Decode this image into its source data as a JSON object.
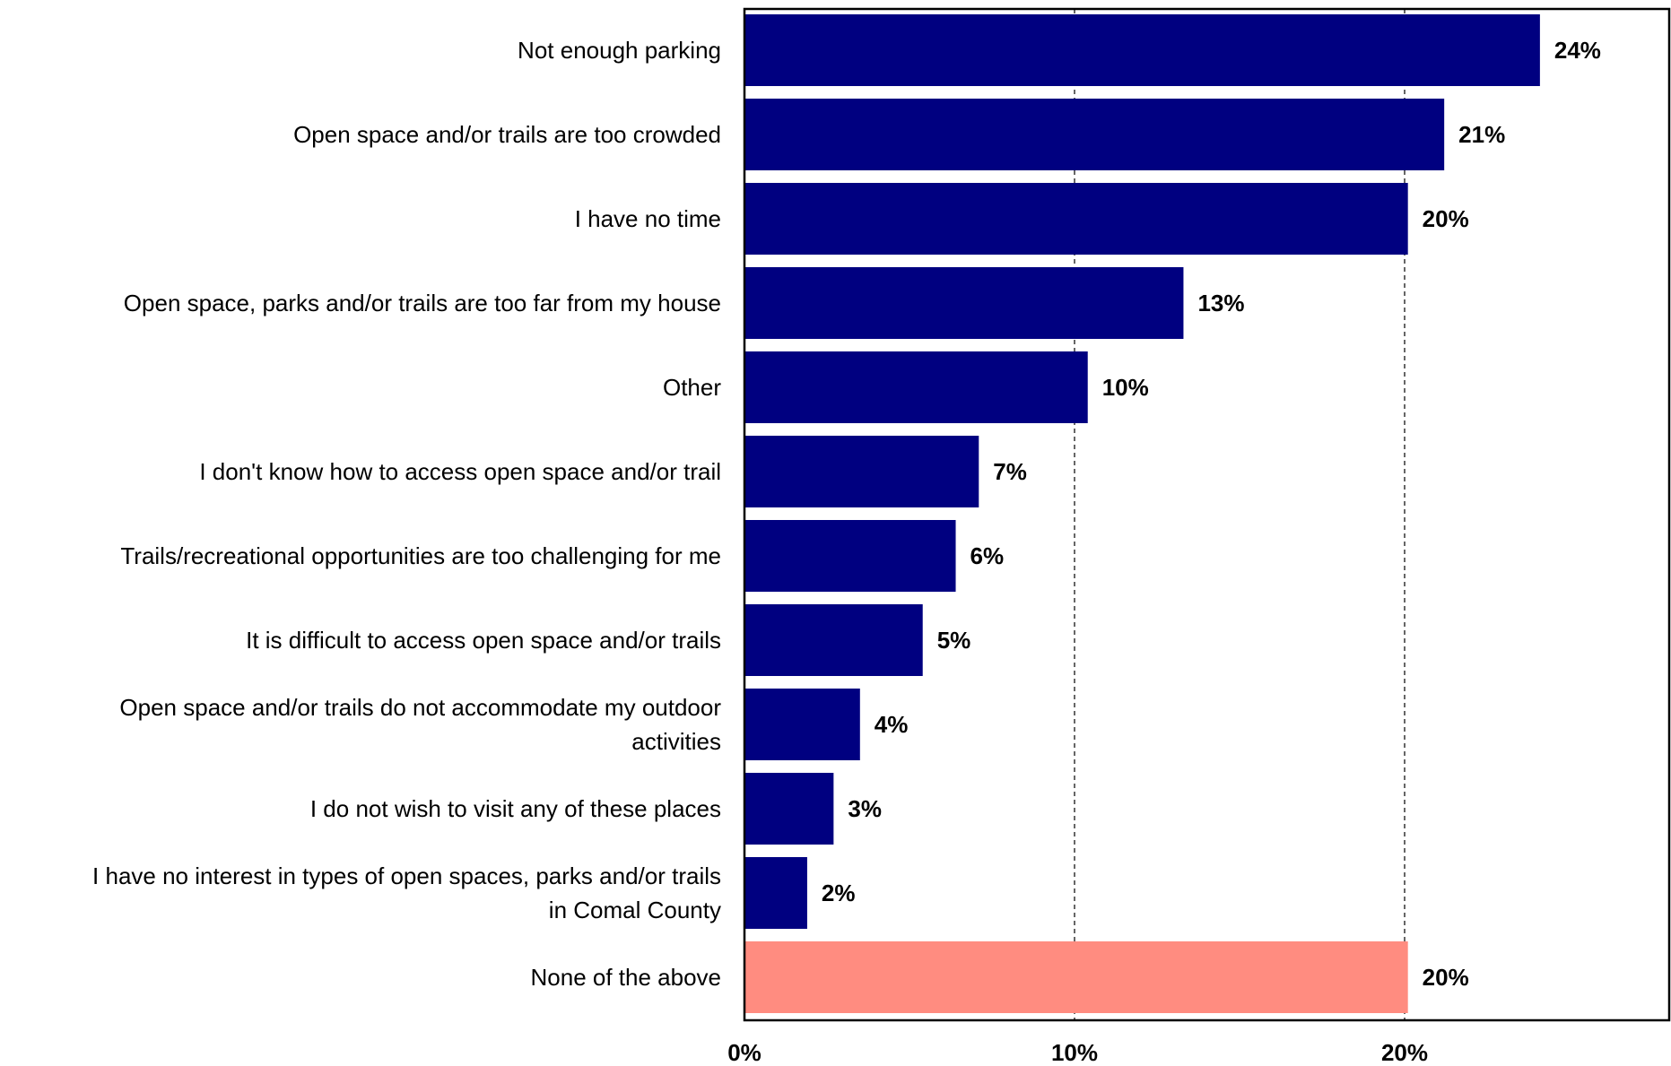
{
  "chart_data": {
    "type": "bar",
    "orientation": "horizontal",
    "categories": [
      [
        "Not enough parking"
      ],
      [
        "Open space and/or trails are too crowded"
      ],
      [
        "I have no time"
      ],
      [
        "Open space, parks and/or trails are too far from my house"
      ],
      [
        "Other"
      ],
      [
        "I don't know how to access open space and/or trail"
      ],
      [
        "Trails/recreational opportunities are too challenging for me"
      ],
      [
        "It is difficult to access open space and/or trails"
      ],
      [
        "Open space and/or trails do not accommodate my outdoor",
        "activities"
      ],
      [
        "I do not wish to visit any of these places"
      ],
      [
        "I have no interest in types of open spaces, parks and/or trails",
        "in Comal County"
      ],
      [
        "None of the above"
      ]
    ],
    "values": [
      24.1,
      21.2,
      20.1,
      13.3,
      10.4,
      7.1,
      6.4,
      5.4,
      3.5,
      2.7,
      1.9,
      20.1
    ],
    "value_labels": [
      "24%",
      "21%",
      "20%",
      "13%",
      "10%",
      "7%",
      "6%",
      "5%",
      "4%",
      "3%",
      "2%",
      "20%"
    ],
    "bar_colors": [
      "#000080",
      "#000080",
      "#000080",
      "#000080",
      "#000080",
      "#000080",
      "#000080",
      "#000080",
      "#000080",
      "#000080",
      "#000080",
      "#FF8C80"
    ],
    "xlim": [
      0,
      27.5
    ],
    "xticks": [
      0,
      10,
      20
    ],
    "xtick_labels": [
      "0%",
      "10%",
      "20%"
    ],
    "grid": "vertical dashed at 10% and 20%",
    "legend": "none"
  }
}
